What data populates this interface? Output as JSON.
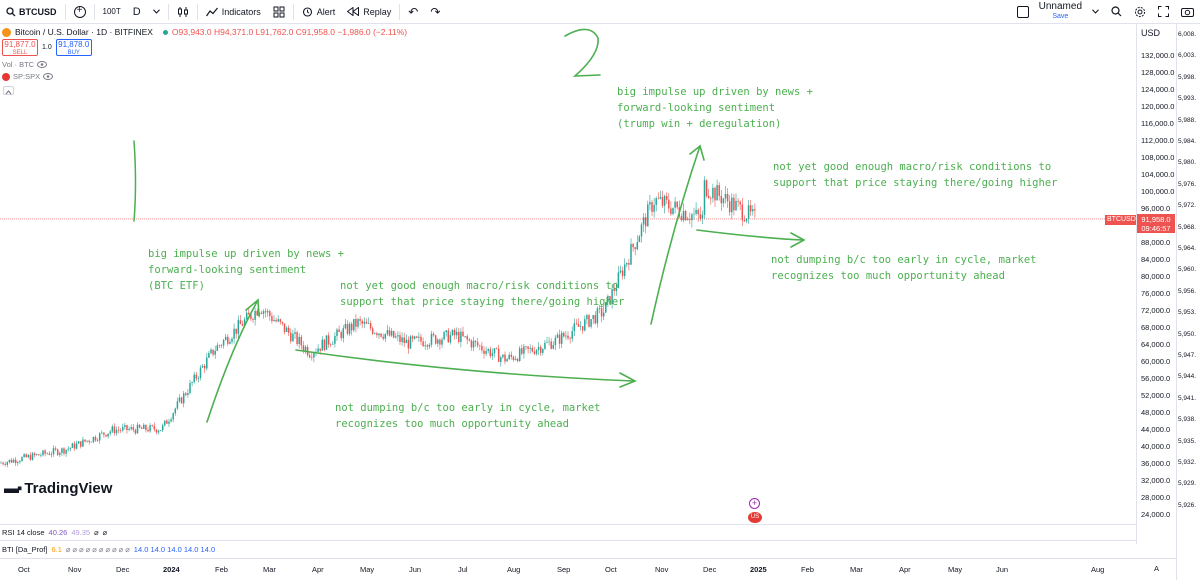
{
  "toolbar": {
    "symbol": "BTCUSD",
    "add_symbol": "+",
    "interval_hint": "100T",
    "interval": "D",
    "chart_type_icon": "candles-icon",
    "indicators": "Indicators",
    "layout_icon": "grid-icon",
    "alert": "Alert",
    "replay": "Replay",
    "undo": "↶",
    "redo": "↷",
    "layout_name": "Unnamed",
    "layout_sub": "Save"
  },
  "legend": {
    "title": "Bitcoin / U.S. Dollar · 1D · BITFINEX",
    "ohlc": "O93,943.0 H94,371.0 L91,762.0 C91,958.0 −1,986.0 (−2.11%)",
    "sell_price": "91,877.0",
    "sell_label": "SELL",
    "spread": "1.0",
    "buy_price": "91,878.0",
    "buy_label": "BUY",
    "vol": "Vol · BTC",
    "spx": "SP:SPX"
  },
  "price_scale": {
    "currency": "USD",
    "ticks": [
      "132,000.0",
      "128,000.0",
      "124,000.0",
      "120,000.0",
      "116,000.0",
      "112,000.0",
      "108,000.0",
      "104,000.0",
      "100,000.0",
      "96,000.0",
      "88,000.0",
      "84,000.0",
      "80,000.0",
      "76,000.0",
      "72,000.0",
      "68,000.0",
      "64,000.0",
      "60,000.0",
      "56,000.0",
      "52,000.0",
      "48,000.0",
      "44,000.0",
      "40,000.0",
      "36,000.0",
      "32,000.0",
      "28,000.0",
      "24,000.0"
    ],
    "current_tag": "BTCUSD",
    "current_price": "91,958.0",
    "countdown": "09:46:57"
  },
  "far_scale": {
    "ticks": [
      "6,008.",
      "6,003.",
      "5,998.",
      "5,993.",
      "5,988.",
      "5,984.",
      "5,980.",
      "5,976.",
      "5,972.",
      "5,968.",
      "5,964.",
      "5,960.",
      "5,956.",
      "5,953.",
      "5,950.",
      "5,947.",
      "5,944.",
      "5,941.",
      "5,938.",
      "5,935.",
      "5,932.",
      "5,929.",
      "5,926."
    ]
  },
  "annotations": {
    "one": "big impulse up driven by news +\nforward-looking sentiment\n(BTC ETF)",
    "two": "not yet good enough macro/risk conditions to\nsupport that price staying there/going higher",
    "three": "not dumping b/c too early in cycle, market\nrecognizes too much opportunity ahead",
    "four": "big impulse up driven by news +\nforward-looking sentiment\n(trump win + deregulation)",
    "five": "not yet good enough macro/risk conditions to\nsupport that price staying there/going higher",
    "six": "not dumping b/c too early in cycle, market\nrecognizes too much opportunity ahead"
  },
  "branding": {
    "logo": "TradingView"
  },
  "rsi": {
    "label": "RSI 14 close",
    "v1": "40.26",
    "v2": "49.35",
    "null1": "⌀",
    "null2": "⌀"
  },
  "bti": {
    "label": "BTI [Da_Prof]",
    "v0": "6.1",
    "nulls": "⌀ ⌀ ⌀ ⌀ ⌀ ⌀ ⌀ ⌀ ⌀ ⌀",
    "vals": "14.0  14.0  14.0  14.0  14.0"
  },
  "time_scale": {
    "labels": [
      "Oct",
      "Nov",
      "Dec",
      "2024",
      "Feb",
      "Mar",
      "Apr",
      "May",
      "Jun",
      "Jul",
      "Aug",
      "Sep",
      "Oct",
      "Nov",
      "Dec",
      "2025",
      "Feb",
      "Mar",
      "Apr",
      "May",
      "Jun",
      "Aug"
    ],
    "auto": "A"
  },
  "colors": {
    "up": "#26a69a",
    "down": "#ef5350",
    "annotation": "#4caf50"
  },
  "chart_data": {
    "type": "candlestick",
    "x": [
      "2023-10",
      "2023-11",
      "2023-12",
      "2024-01",
      "2024-02",
      "2024-03",
      "2024-04",
      "2024-05",
      "2024-06",
      "2024-07",
      "2024-08",
      "2024-09",
      "2024-10",
      "2024-11",
      "2024-12"
    ],
    "close": [
      34500,
      37700,
      42300,
      42600,
      61100,
      71300,
      60600,
      67500,
      62700,
      64600,
      58900,
      63300,
      70200,
      96400,
      91958
    ],
    "ylim": [
      22000,
      136000
    ]
  }
}
